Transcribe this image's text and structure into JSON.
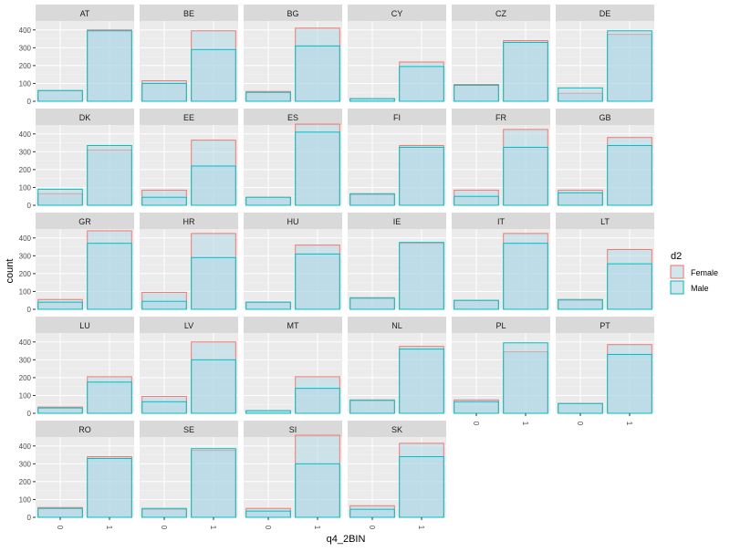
{
  "chart_data": {
    "type": "bar",
    "facet_variable": "country",
    "xlabel": "q4_2BIN",
    "ylabel": "count",
    "categories": [
      "0",
      "1"
    ],
    "ylim": [
      0,
      450
    ],
    "yticks": [
      0,
      100,
      200,
      300,
      400
    ],
    "grid": true,
    "bar_mode": "overlay",
    "legend": {
      "title": "d2",
      "position": "right",
      "entries": [
        {
          "label": "Female",
          "color": "#F8766D"
        },
        {
          "label": "Male",
          "color": "#00BFC4"
        }
      ]
    },
    "series_colors": {
      "Female": "#F8766D",
      "Male": "#00BFC4"
    },
    "fill_color": "#ADD8E6",
    "panels": [
      {
        "name": "AT",
        "series": [
          {
            "name": "Female",
            "values": [
              60,
              400
            ]
          },
          {
            "name": "Male",
            "values": [
              60,
              395
            ]
          }
        ]
      },
      {
        "name": "BE",
        "series": [
          {
            "name": "Female",
            "values": [
              115,
              395
            ]
          },
          {
            "name": "Male",
            "values": [
              100,
              290
            ]
          }
        ]
      },
      {
        "name": "BG",
        "series": [
          {
            "name": "Female",
            "values": [
              55,
              410
            ]
          },
          {
            "name": "Male",
            "values": [
              50,
              310
            ]
          }
        ]
      },
      {
        "name": "CY",
        "series": [
          {
            "name": "Female",
            "values": [
              15,
              220
            ]
          },
          {
            "name": "Male",
            "values": [
              15,
              195
            ]
          }
        ]
      },
      {
        "name": "CZ",
        "series": [
          {
            "name": "Female",
            "values": [
              95,
              340
            ]
          },
          {
            "name": "Male",
            "values": [
              90,
              330
            ]
          }
        ]
      },
      {
        "name": "DE",
        "series": [
          {
            "name": "Female",
            "values": [
              45,
              375
            ]
          },
          {
            "name": "Male",
            "values": [
              75,
              395
            ]
          }
        ]
      },
      {
        "name": "DK",
        "series": [
          {
            "name": "Female",
            "values": [
              65,
              310
            ]
          },
          {
            "name": "Male",
            "values": [
              90,
              335
            ]
          }
        ]
      },
      {
        "name": "EE",
        "series": [
          {
            "name": "Female",
            "values": [
              85,
              365
            ]
          },
          {
            "name": "Male",
            "values": [
              45,
              220
            ]
          }
        ]
      },
      {
        "name": "ES",
        "series": [
          {
            "name": "Female",
            "values": [
              45,
              455
            ]
          },
          {
            "name": "Male",
            "values": [
              45,
              410
            ]
          }
        ]
      },
      {
        "name": "FI",
        "series": [
          {
            "name": "Female",
            "values": [
              60,
              335
            ]
          },
          {
            "name": "Male",
            "values": [
              65,
              325
            ]
          }
        ]
      },
      {
        "name": "FR",
        "series": [
          {
            "name": "Female",
            "values": [
              85,
              425
            ]
          },
          {
            "name": "Male",
            "values": [
              50,
              325
            ]
          }
        ]
      },
      {
        "name": "GB",
        "series": [
          {
            "name": "Female",
            "values": [
              85,
              380
            ]
          },
          {
            "name": "Male",
            "values": [
              70,
              335
            ]
          }
        ]
      },
      {
        "name": "GR",
        "series": [
          {
            "name": "Female",
            "values": [
              55,
              440
            ]
          },
          {
            "name": "Male",
            "values": [
              40,
              370
            ]
          }
        ]
      },
      {
        "name": "HR",
        "series": [
          {
            "name": "Female",
            "values": [
              95,
              425
            ]
          },
          {
            "name": "Male",
            "values": [
              45,
              290
            ]
          }
        ]
      },
      {
        "name": "HU",
        "series": [
          {
            "name": "Female",
            "values": [
              40,
              360
            ]
          },
          {
            "name": "Male",
            "values": [
              40,
              310
            ]
          }
        ]
      },
      {
        "name": "IE",
        "series": [
          {
            "name": "Female",
            "values": [
              60,
              370
            ]
          },
          {
            "name": "Male",
            "values": [
              65,
              375
            ]
          }
        ]
      },
      {
        "name": "IT",
        "series": [
          {
            "name": "Female",
            "values": [
              50,
              425
            ]
          },
          {
            "name": "Male",
            "values": [
              50,
              370
            ]
          }
        ]
      },
      {
        "name": "LT",
        "series": [
          {
            "name": "Female",
            "values": [
              50,
              335
            ]
          },
          {
            "name": "Male",
            "values": [
              55,
              255
            ]
          }
        ]
      },
      {
        "name": "LU",
        "series": [
          {
            "name": "Female",
            "values": [
              35,
              205
            ]
          },
          {
            "name": "Male",
            "values": [
              30,
              175
            ]
          }
        ]
      },
      {
        "name": "LV",
        "series": [
          {
            "name": "Female",
            "values": [
              95,
              400
            ]
          },
          {
            "name": "Male",
            "values": [
              65,
              300
            ]
          }
        ]
      },
      {
        "name": "MT",
        "series": [
          {
            "name": "Female",
            "values": [
              15,
              205
            ]
          },
          {
            "name": "Male",
            "values": [
              15,
              140
            ]
          }
        ]
      },
      {
        "name": "NL",
        "series": [
          {
            "name": "Female",
            "values": [
              70,
              375
            ]
          },
          {
            "name": "Male",
            "values": [
              75,
              360
            ]
          }
        ]
      },
      {
        "name": "PL",
        "series": [
          {
            "name": "Female",
            "values": [
              75,
              345
            ]
          },
          {
            "name": "Male",
            "values": [
              65,
              395
            ]
          }
        ]
      },
      {
        "name": "PT",
        "series": [
          {
            "name": "Female",
            "values": [
              55,
              385
            ]
          },
          {
            "name": "Male",
            "values": [
              55,
              330
            ]
          }
        ]
      },
      {
        "name": "RO",
        "series": [
          {
            "name": "Female",
            "values": [
              55,
              340
            ]
          },
          {
            "name": "Male",
            "values": [
              50,
              330
            ]
          }
        ]
      },
      {
        "name": "SE",
        "series": [
          {
            "name": "Female",
            "values": [
              45,
              375
            ]
          },
          {
            "name": "Male",
            "values": [
              50,
              385
            ]
          }
        ]
      },
      {
        "name": "SI",
        "series": [
          {
            "name": "Female",
            "values": [
              50,
              460
            ]
          },
          {
            "name": "Male",
            "values": [
              35,
              300
            ]
          }
        ]
      },
      {
        "name": "SK",
        "series": [
          {
            "name": "Female",
            "values": [
              65,
              415
            ]
          },
          {
            "name": "Male",
            "values": [
              45,
              340
            ]
          }
        ]
      }
    ]
  }
}
